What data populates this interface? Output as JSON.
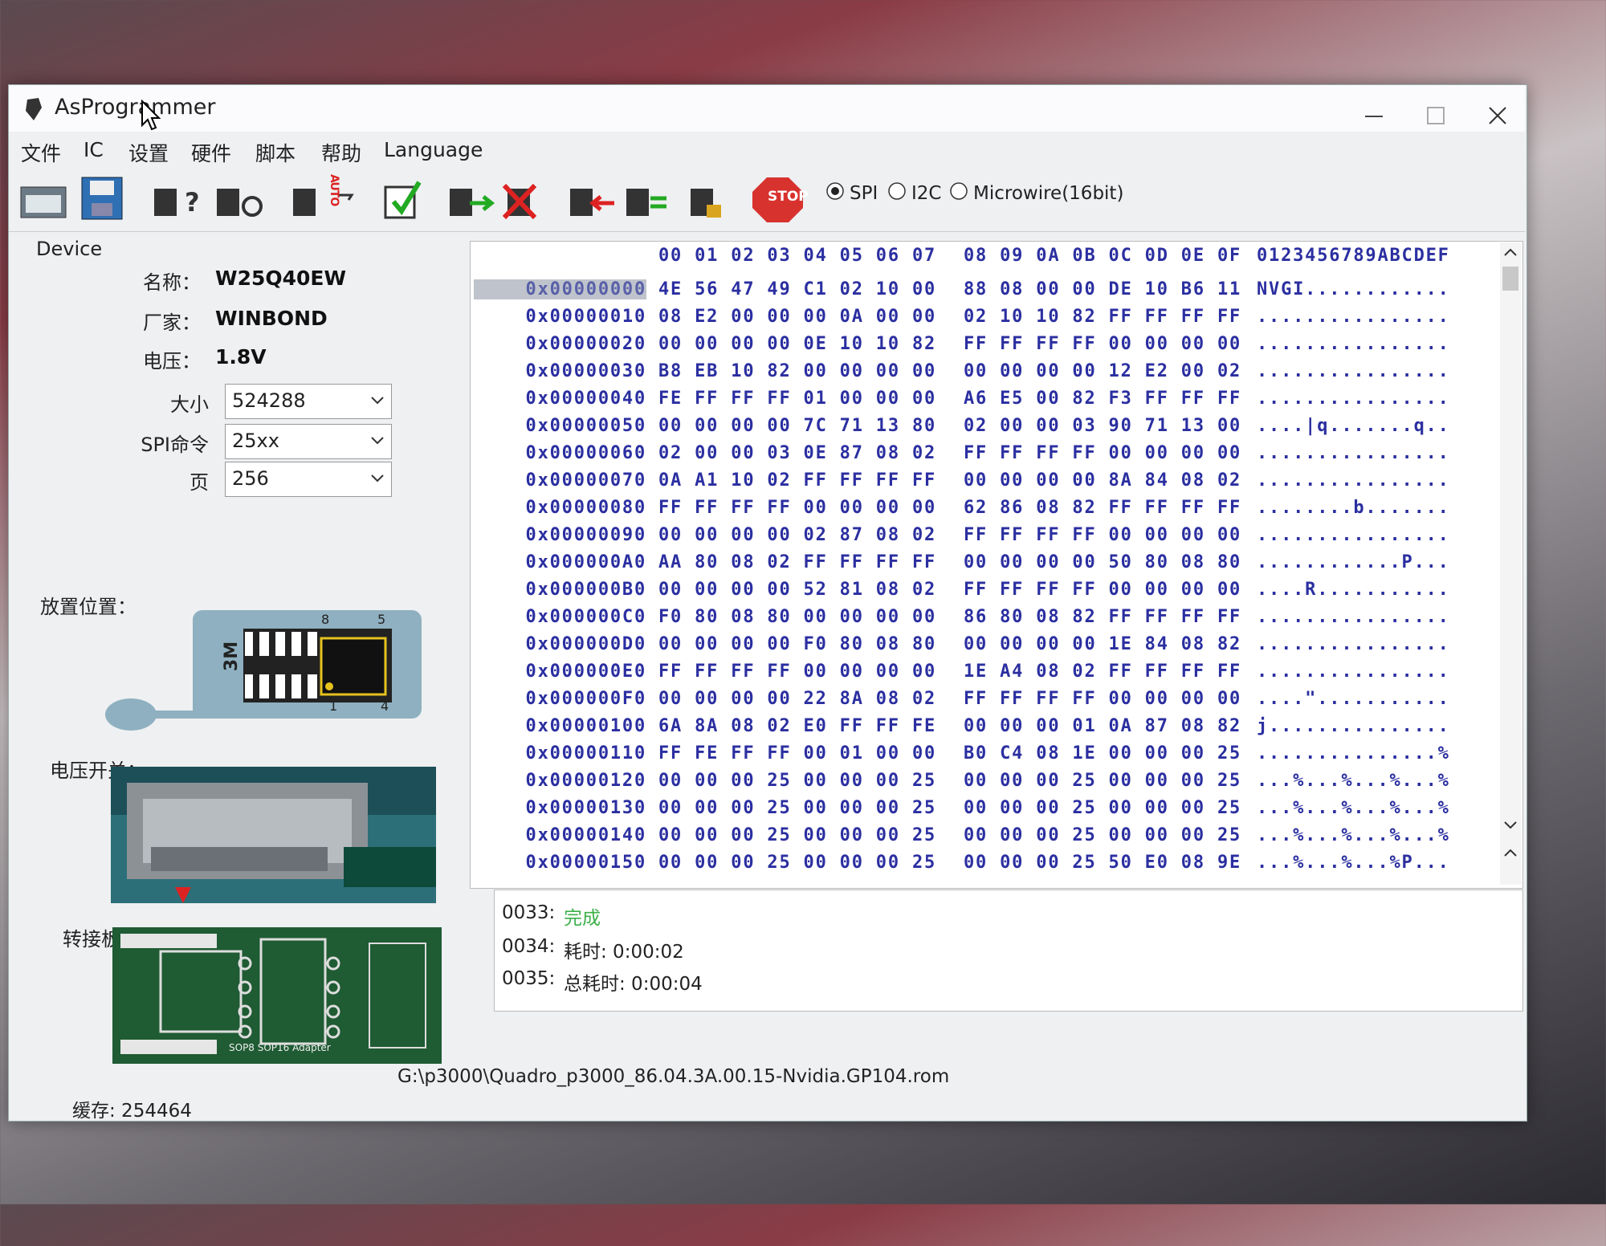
{
  "window": {
    "title": "AsProgrammer"
  },
  "menu": [
    "文件",
    "IC",
    "设置",
    "硬件",
    "脚本",
    "帮助",
    "Language"
  ],
  "toolbar": {
    "auto_label": "AUTO",
    "stop_label": "STOP",
    "protocols": [
      {
        "label": "SPI",
        "selected": true
      },
      {
        "label": "I2C",
        "selected": false
      },
      {
        "label": "Microwire(16bit)",
        "selected": false
      }
    ]
  },
  "device": {
    "heading": "Device",
    "fields": [
      {
        "label": "名称：",
        "value": "W25Q40EW"
      },
      {
        "label": "厂家：",
        "value": "WINBOND"
      },
      {
        "label": "电压：",
        "value": "1.8V"
      }
    ],
    "selects": [
      {
        "label": "大小",
        "value": "524288"
      },
      {
        "label": "SPI命令",
        "value": "25xx"
      },
      {
        "label": "页",
        "value": "256"
      }
    ]
  },
  "placement": {
    "label": "放置位置：",
    "chip_label": "3M",
    "pins": [
      "8",
      "5",
      "1",
      "4"
    ]
  },
  "voltage_switch": {
    "label": "电压开关："
  },
  "adapter": {
    "label": "转接板：",
    "board_text": "SOP8 SOP16 Adapter"
  },
  "hex": {
    "header": {
      "lo": "00 01 02 03 04 05 06 07",
      "hi": "08 09 0A 0B 0C 0D 0E 0F",
      "ascii": "0123456789ABCDEF"
    },
    "selected_row": 0,
    "rows": [
      {
        "address": "0x00000000",
        "lo": "4E 56 47 49 C1 02 10 00",
        "hi": "88 08 00 00 DE 10 B6 11",
        "ascii": "NVGI............"
      },
      {
        "address": "0x00000010",
        "lo": "08 E2 00 00 00 0A 00 00",
        "hi": "02 10 10 82 FF FF FF FF",
        "ascii": "................"
      },
      {
        "address": "0x00000020",
        "lo": "00 00 00 00 0E 10 10 82",
        "hi": "FF FF FF FF 00 00 00 00",
        "ascii": "................"
      },
      {
        "address": "0x00000030",
        "lo": "B8 EB 10 82 00 00 00 00",
        "hi": "00 00 00 00 12 E2 00 02",
        "ascii": "................"
      },
      {
        "address": "0x00000040",
        "lo": "FE FF FF FF 01 00 00 00",
        "hi": "A6 E5 00 82 F3 FF FF FF",
        "ascii": "................"
      },
      {
        "address": "0x00000050",
        "lo": "00 00 00 00 7C 71 13 80",
        "hi": "02 00 00 03 90 71 13 00",
        "ascii": "....|q.......q.."
      },
      {
        "address": "0x00000060",
        "lo": "02 00 00 03 0E 87 08 02",
        "hi": "FF FF FF FF 00 00 00 00",
        "ascii": "................"
      },
      {
        "address": "0x00000070",
        "lo": "0A A1 10 02 FF FF FF FF",
        "hi": "00 00 00 00 8A 84 08 02",
        "ascii": "................"
      },
      {
        "address": "0x00000080",
        "lo": "FF FF FF FF 00 00 00 00",
        "hi": "62 86 08 82 FF FF FF FF",
        "ascii": "........b......."
      },
      {
        "address": "0x00000090",
        "lo": "00 00 00 00 02 87 08 02",
        "hi": "FF FF FF FF 00 00 00 00",
        "ascii": "................"
      },
      {
        "address": "0x000000A0",
        "lo": "AA 80 08 02 FF FF FF FF",
        "hi": "00 00 00 00 50 80 08 80",
        "ascii": "............P..."
      },
      {
        "address": "0x000000B0",
        "lo": "00 00 00 00 52 81 08 02",
        "hi": "FF FF FF FF 00 00 00 00",
        "ascii": "....R..........."
      },
      {
        "address": "0x000000C0",
        "lo": "F0 80 08 80 00 00 00 00",
        "hi": "86 80 08 82 FF FF FF FF",
        "ascii": "................"
      },
      {
        "address": "0x000000D0",
        "lo": "00 00 00 00 F0 80 08 80",
        "hi": "00 00 00 00 1E 84 08 82",
        "ascii": "................"
      },
      {
        "address": "0x000000E0",
        "lo": "FF FF FF FF 00 00 00 00",
        "hi": "1E A4 08 02 FF FF FF FF",
        "ascii": "................"
      },
      {
        "address": "0x000000F0",
        "lo": "00 00 00 00 22 8A 08 02",
        "hi": "FF FF FF FF 00 00 00 00",
        "ascii": "....\"..........."
      },
      {
        "address": "0x00000100",
        "lo": "6A 8A 08 02 E0 FF FF FE",
        "hi": "00 00 00 01 0A 87 08 82",
        "ascii": "j..............."
      },
      {
        "address": "0x00000110",
        "lo": "FF FE FF FF 00 01 00 00",
        "hi": "B0 C4 08 1E 00 00 00 25",
        "ascii": "...............%"
      },
      {
        "address": "0x00000120",
        "lo": "00 00 00 25 00 00 00 25",
        "hi": "00 00 00 25 00 00 00 25",
        "ascii": "...%...%...%...%"
      },
      {
        "address": "0x00000130",
        "lo": "00 00 00 25 00 00 00 25",
        "hi": "00 00 00 25 00 00 00 25",
        "ascii": "...%...%...%...%"
      },
      {
        "address": "0x00000140",
        "lo": "00 00 00 25 00 00 00 25",
        "hi": "00 00 00 25 00 00 00 25",
        "ascii": "...%...%...%...%"
      },
      {
        "address": "0x00000150",
        "lo": "00 00 00 25 00 00 00 25",
        "hi": "00 00 00 25 50 E0 08 9E",
        "ascii": "...%...%...%P..."
      }
    ]
  },
  "log": [
    {
      "prefix": "0033:",
      "text": "完成"
    },
    {
      "prefix": "0034:",
      "text": "耗时: 0:00:02"
    },
    {
      "prefix": "0035:",
      "text": "总耗时: 0:00:04"
    }
  ],
  "status": {
    "buffer": "缓存: 254464",
    "file": "G:\\p3000\\Quadro_p3000_86.04.3A.00.15-Nvidia.GP104.rom"
  }
}
